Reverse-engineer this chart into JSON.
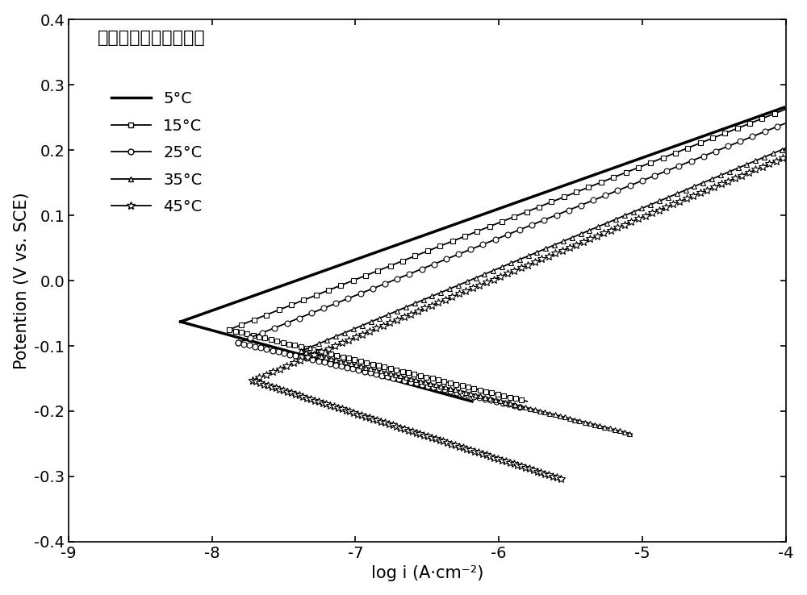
{
  "title": "黄铁矿在盐碱土溶液中",
  "xlabel": "log i (A·cm⁻²)",
  "ylabel": "Potention (V vs. SCE)",
  "xlim": [
    -9,
    -4
  ],
  "ylim": [
    -0.4,
    0.4
  ],
  "xticks": [
    -9,
    -8,
    -7,
    -6,
    -5,
    -4
  ],
  "yticks": [
    -0.4,
    -0.3,
    -0.2,
    -0.1,
    0.0,
    0.1,
    0.2,
    0.3,
    0.4
  ],
  "curves": [
    {
      "label": "5°C",
      "marker": "none",
      "linewidth": 2.5,
      "E_corr": -0.063,
      "log_i_corr": -8.22,
      "beta_a": 0.078,
      "beta_c": 0.06,
      "E_anodic_max": 0.34,
      "E_cathodic_min": -0.185
    },
    {
      "label": "15°C",
      "marker": "s",
      "markersize": 5,
      "markevery": 8,
      "linewidth": 1.3,
      "E_corr": -0.075,
      "log_i_corr": -7.88,
      "beta_a": 0.087,
      "beta_c": 0.053,
      "E_anodic_max": 0.3,
      "E_cathodic_min": -0.185
    },
    {
      "label": "25°C",
      "marker": "o",
      "markersize": 5,
      "markevery": 8,
      "linewidth": 1.3,
      "E_corr": -0.095,
      "log_i_corr": -7.82,
      "beta_a": 0.088,
      "beta_c": 0.05,
      "E_anodic_max": 0.28,
      "E_cathodic_min": -0.195
    },
    {
      "label": "35°C",
      "marker": "^",
      "markersize": 5,
      "markevery": 6,
      "linewidth": 1.3,
      "E_corr": -0.108,
      "log_i_corr": -7.38,
      "beta_a": 0.092,
      "beta_c": 0.055,
      "E_anodic_max": 0.265,
      "E_cathodic_min": -0.235
    },
    {
      "label": "45°C",
      "marker": "*",
      "markersize": 7,
      "markevery": 5,
      "linewidth": 1.3,
      "E_corr": -0.153,
      "log_i_corr": -7.72,
      "beta_a": 0.092,
      "beta_c": 0.07,
      "E_anodic_max": 0.2,
      "E_cathodic_min": -0.305
    }
  ],
  "background_color": "white",
  "title_fontsize": 16,
  "label_fontsize": 15,
  "tick_fontsize": 14,
  "legend_fontsize": 14
}
